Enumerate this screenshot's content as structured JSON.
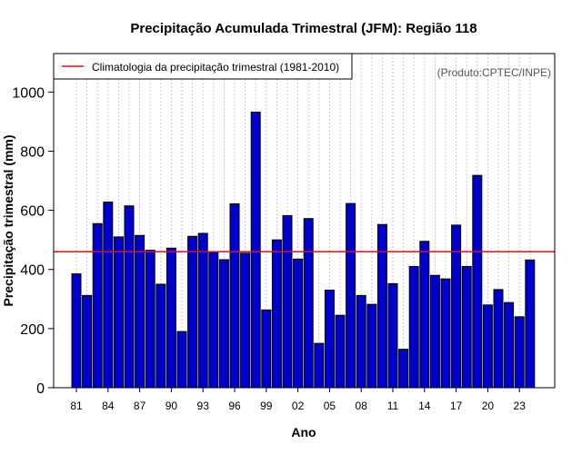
{
  "chart_data": {
    "type": "bar",
    "title": "Precipitação Acumulada Trimestral (JFM): Região 118",
    "xlabel": "Ano",
    "ylabel": "Precipitação trimestral (mm)",
    "ylim": [
      0,
      1130
    ],
    "yticks": [
      0,
      200,
      400,
      600,
      800,
      1000
    ],
    "categories": [
      "81",
      "82",
      "83",
      "84",
      "85",
      "86",
      "87",
      "88",
      "89",
      "90",
      "91",
      "92",
      "93",
      "94",
      "95",
      "96",
      "97",
      "98",
      "99",
      "00",
      "01",
      "02",
      "03",
      "04",
      "05",
      "06",
      "07",
      "08",
      "09",
      "10",
      "11",
      "12",
      "13",
      "14",
      "15",
      "16",
      "17",
      "18",
      "19",
      "20",
      "21",
      "22",
      "23",
      "24"
    ],
    "tick_labels": [
      "81",
      "84",
      "87",
      "90",
      "93",
      "96",
      "99",
      "02",
      "05",
      "08",
      "11",
      "14",
      "17",
      "20",
      "23"
    ],
    "values": [
      385,
      312,
      555,
      628,
      510,
      615,
      515,
      465,
      350,
      472,
      190,
      512,
      522,
      460,
      433,
      622,
      455,
      932,
      263,
      500,
      582,
      435,
      572,
      150,
      330,
      245,
      623,
      312,
      282,
      552,
      352,
      130,
      410,
      495,
      380,
      368,
      550,
      410,
      718,
      280,
      332,
      288,
      240,
      432
    ],
    "bar_color": "#0000cc",
    "reference_line": {
      "value": 460,
      "label": "Climatologia da precipitação trimestral (1981-2010)",
      "color": "#ff0000"
    },
    "grid": "vertical-dotted",
    "legend": "top-left",
    "credit": "(Produto:CPTEC/INPE)"
  }
}
